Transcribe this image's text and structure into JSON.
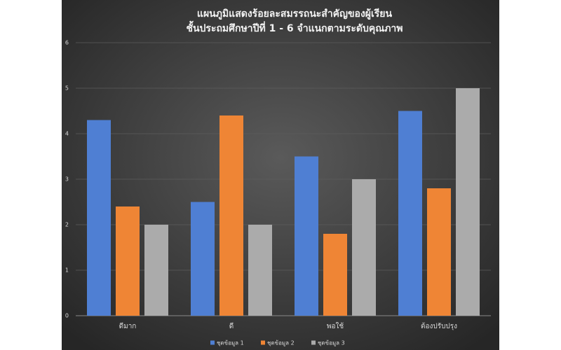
{
  "chart_data": {
    "type": "bar",
    "title": "แผนภูมิแสดงร้อยละสมรรถนะสำคัญของผู้เรียน",
    "subtitle": "ชั้นประถมศึกษาปีที่ 1 - 6 จำแนกตามระดับคุณภาพ",
    "categories": [
      "ดีมาก",
      "ดี",
      "พอใช้",
      "ต้องปรับปรุง"
    ],
    "series": [
      {
        "name": "ชุดข้อมูล 1",
        "color": "#4f7fd3",
        "values": [
          4.3,
          2.5,
          3.5,
          4.5
        ]
      },
      {
        "name": "ชุดข้อมูล 2",
        "color": "#ef8535",
        "values": [
          2.4,
          4.4,
          1.8,
          2.8
        ]
      },
      {
        "name": "ชุดข้อมูล 3",
        "color": "#ababab",
        "values": [
          2,
          2,
          3,
          5
        ]
      }
    ],
    "ylim": [
      0,
      6
    ],
    "yticks": [
      0,
      1,
      2,
      3,
      4,
      5,
      6
    ],
    "grid": true,
    "legend": "bottom"
  }
}
